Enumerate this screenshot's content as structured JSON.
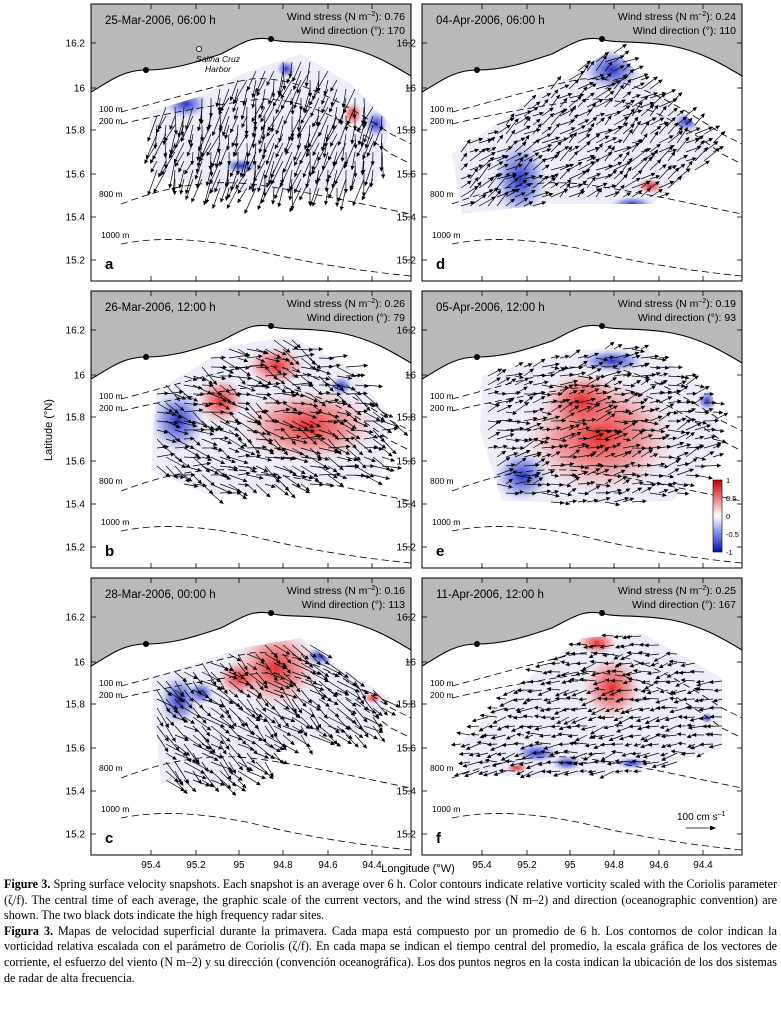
{
  "figure": {
    "axes": {
      "ylabel": "Latitude (°N)",
      "xlabel": "Longitude (°W)",
      "yticks": [
        "16.2",
        "16",
        "15.8",
        "15.6",
        "15.4",
        "15.2"
      ],
      "xticks": [
        "95.4",
        "95.2",
        "95",
        "94.8",
        "94.6",
        "94.4"
      ]
    },
    "panels": [
      {
        "letter": "a",
        "time": "25-Mar-2006, 06:00 h",
        "stress_label": "Wind stress (N m",
        "stress_value": "): 0.76",
        "dir_label": "Wind direction (°): 170"
      },
      {
        "letter": "d",
        "time": "04-Apr-2006, 06:00 h",
        "stress_label": "Wind stress (N m",
        "stress_value": "): 0.24",
        "dir_label": "Wind direction (°): 110"
      },
      {
        "letter": "b",
        "time": "26-Mar-2006, 12:00 h",
        "stress_label": "Wind stress (N m",
        "stress_value": "): 0.26",
        "dir_label": "Wind direction (°): 79"
      },
      {
        "letter": "e",
        "time": "05-Apr-2006, 12:00 h",
        "stress_label": "Wind stress (N m",
        "stress_value": "): 0.19",
        "dir_label": "Wind direction (°): 93"
      },
      {
        "letter": "c",
        "time": "28-Mar-2006, 00:00 h",
        "stress_label": "Wind stress (N m",
        "stress_value": "): 0.16",
        "dir_label": "Wind direction (°): 113"
      },
      {
        "letter": "f",
        "time": "11-Apr-2006, 12:00 h",
        "stress_label": "Wind stress (N m",
        "stress_value": "): 0.25",
        "dir_label": "Wind direction (°): 167"
      }
    ],
    "depth_labels": [
      "100 m",
      "200 m",
      "800 m",
      "1000 m"
    ],
    "harbor_label": [
      "Salina Cruz",
      "Harbor"
    ],
    "colorbar_ticks": [
      "1",
      "0.5",
      "0",
      "-0.5",
      "-1"
    ],
    "scale_label": "100 cm s",
    "colors": {
      "land": "#b9b9b9",
      "red": "#e02020",
      "blue": "#2233cc"
    }
  },
  "caption": {
    "en_label": "Figure 3.",
    "en_text": " Spring surface velocity snapshots. Each snapshot is an average over 6 h. Color contours indicate relative vorticity scaled with the Coriolis parameter (ζ/f). The central time of each average, the graphic scale of the current vectors, and the wind stress (N m–2) and direction (oceanographic convention) are shown. The two black dots indicate the high frequency radar sites.",
    "es_label": "Figura 3.",
    "es_text": " Mapas de velocidad superficial durante la primavera. Cada mapa está compuesto por un promedio de 6 h. Los contornos de color indican la vorticidad relativa escalada con el parámetro de Coriolis (ζ/f). En cada mapa se indican el tiempo central del promedio, la escala gráfica de los vectores de corriente, el esfuerzo del viento (N m–2) y su dirección (convención oceanográfica). Los dos puntos negros en la costa indican la ubicación de los dos sistemas de radar de alta frecuencia."
  }
}
